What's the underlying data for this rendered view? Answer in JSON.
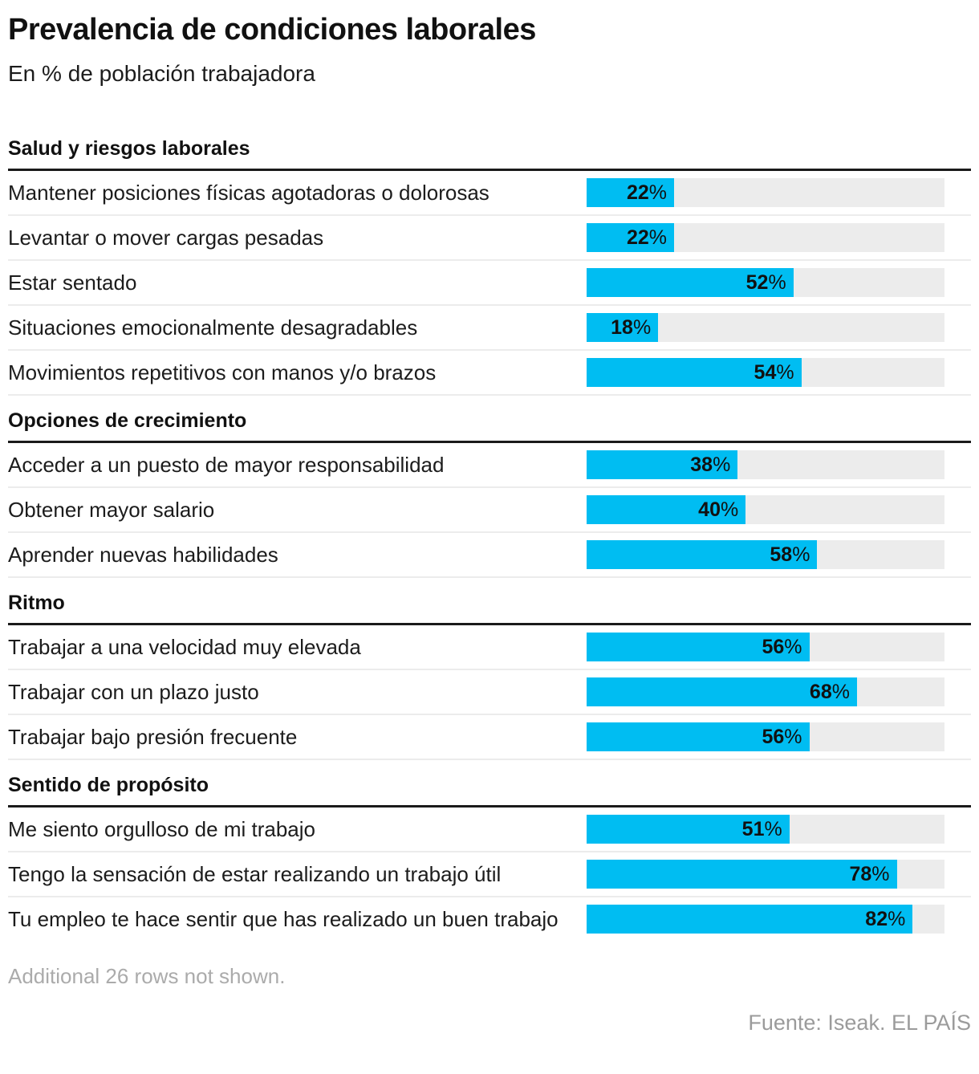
{
  "header": {
    "title": "Prevalencia de condiciones laborales",
    "subtitle": "En % de población trabajadora"
  },
  "chart_data": {
    "type": "bar",
    "orientation": "horizontal",
    "unit": "%",
    "value_suffix": "%",
    "scale_max": 90,
    "bar_color": "#00bdf2",
    "track_color": "#ececec",
    "value_labels": "inside-right, number bold, percent sign regular",
    "sections": [
      {
        "header": "Salud y riesgos laborales",
        "rows": [
          {
            "label": "Mantener posiciones físicas agotadoras o dolorosas",
            "value": 22
          },
          {
            "label": "Levantar o mover cargas pesadas",
            "value": 22
          },
          {
            "label": "Estar sentado",
            "value": 52
          },
          {
            "label": "Situaciones emocionalmente desagradables",
            "value": 18
          },
          {
            "label": "Movimientos repetitivos con manos y/o brazos",
            "value": 54
          }
        ]
      },
      {
        "header": "Opciones de crecimiento",
        "rows": [
          {
            "label": "Acceder a un puesto de mayor responsabilidad",
            "value": 38
          },
          {
            "label": "Obtener mayor salario",
            "value": 40
          },
          {
            "label": "Aprender nuevas habilidades",
            "value": 58
          }
        ]
      },
      {
        "header": "Ritmo",
        "rows": [
          {
            "label": "Trabajar a una velocidad muy elevada",
            "value": 56
          },
          {
            "label": "Trabajar con un plazo justo",
            "value": 68
          },
          {
            "label": "Trabajar bajo presión frecuente",
            "value": 56
          }
        ]
      },
      {
        "header": "Sentido de propósito",
        "rows": [
          {
            "label": "Me siento orgulloso de mi trabajo",
            "value": 51
          },
          {
            "label": "Tengo la sensación de estar realizando un trabajo útil",
            "value": 78
          },
          {
            "label": "Tu empleo te hace sentir que has realizado un buen trabajo",
            "value": 82
          }
        ]
      }
    ]
  },
  "footer": {
    "note": "Additional 26 rows not shown.",
    "source": "Fuente: Iseak. EL PAÍS"
  }
}
